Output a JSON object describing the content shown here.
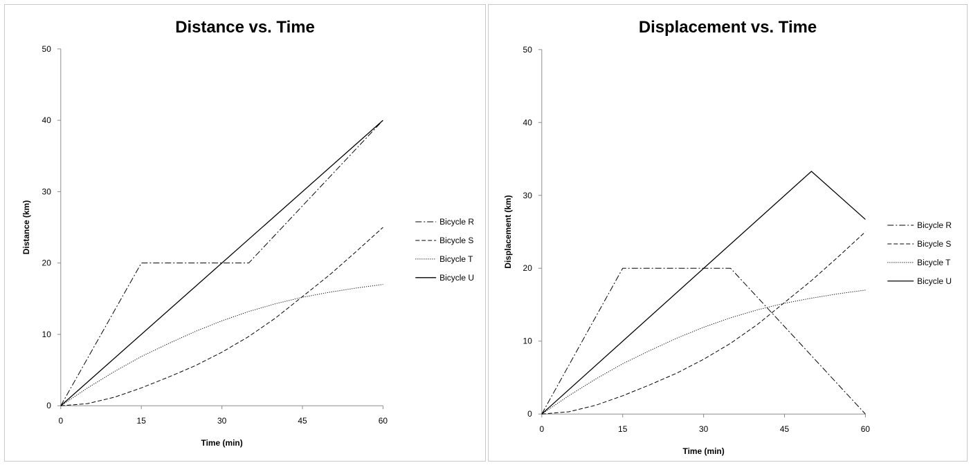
{
  "chart_data": [
    {
      "type": "line",
      "title": "Distance vs. Time",
      "xlabel": "Time (min)",
      "ylabel": "Distance (km)",
      "xlim": [
        0,
        60
      ],
      "ylim": [
        0,
        50
      ],
      "xticks": [
        0,
        15,
        30,
        45,
        60
      ],
      "yticks": [
        0,
        10,
        20,
        30,
        40,
        50
      ],
      "grid": false,
      "legend": "right",
      "series": [
        {
          "name": "Bicycle R",
          "style": "dashdot",
          "x": [
            0,
            15,
            35,
            60
          ],
          "y": [
            0,
            20,
            20,
            40
          ]
        },
        {
          "name": "Bicycle S",
          "style": "dashed",
          "x": [
            0,
            5,
            10,
            15,
            20,
            25,
            30,
            35,
            40,
            45,
            50,
            55,
            60
          ],
          "y": [
            0,
            0.3,
            1.2,
            2.5,
            4.0,
            5.6,
            7.5,
            9.7,
            12.3,
            15.3,
            18.3,
            21.6,
            25.0
          ]
        },
        {
          "name": "Bicycle T",
          "style": "dotted",
          "x": [
            0,
            5,
            10,
            15,
            20,
            25,
            30,
            35,
            40,
            45,
            50,
            55,
            60
          ],
          "y": [
            0,
            2.5,
            4.8,
            6.9,
            8.7,
            10.4,
            11.9,
            13.2,
            14.3,
            15.2,
            15.9,
            16.5,
            17.0
          ]
        },
        {
          "name": "Bicycle U",
          "style": "solid",
          "x": [
            0,
            60
          ],
          "y": [
            0,
            40
          ]
        }
      ]
    },
    {
      "type": "line",
      "title": "Displacement vs. Time",
      "xlabel": "Time (min)",
      "ylabel": "Displacement (km)",
      "xlim": [
        0,
        60
      ],
      "ylim": [
        0,
        50
      ],
      "xticks": [
        0,
        15,
        30,
        45,
        60
      ],
      "yticks": [
        0,
        10,
        20,
        30,
        40,
        50
      ],
      "grid": false,
      "legend": "right",
      "series": [
        {
          "name": "Bicycle R",
          "style": "dashdot",
          "x": [
            0,
            15,
            35,
            60
          ],
          "y": [
            0,
            20,
            20,
            0
          ]
        },
        {
          "name": "Bicycle S",
          "style": "dashed",
          "x": [
            0,
            5,
            10,
            15,
            20,
            25,
            30,
            35,
            40,
            45,
            50,
            55,
            60
          ],
          "y": [
            0,
            0.3,
            1.2,
            2.5,
            4.0,
            5.6,
            7.5,
            9.7,
            12.3,
            15.3,
            18.3,
            21.6,
            25.0
          ]
        },
        {
          "name": "Bicycle T",
          "style": "dotted",
          "x": [
            0,
            5,
            10,
            15,
            20,
            25,
            30,
            35,
            40,
            45,
            50,
            55,
            60
          ],
          "y": [
            0,
            2.5,
            4.8,
            6.9,
            8.7,
            10.4,
            11.9,
            13.2,
            14.3,
            15.2,
            15.9,
            16.5,
            17.0
          ]
        },
        {
          "name": "Bicycle U",
          "style": "solid",
          "x": [
            0,
            50,
            60
          ],
          "y": [
            0,
            33.3,
            26.7
          ]
        }
      ]
    }
  ]
}
